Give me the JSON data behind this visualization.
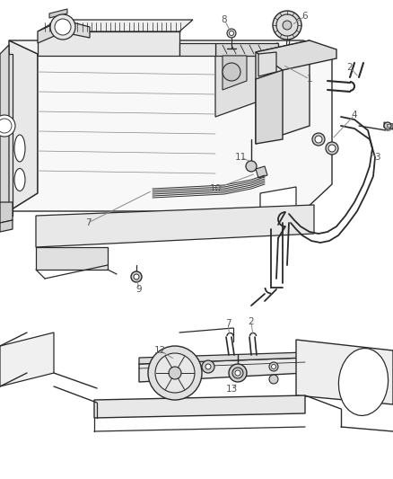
{
  "bg_color": "#ffffff",
  "line_color": "#2a2a2a",
  "label_color": "#555555",
  "figsize": [
    4.38,
    5.33
  ],
  "dpi": 100
}
